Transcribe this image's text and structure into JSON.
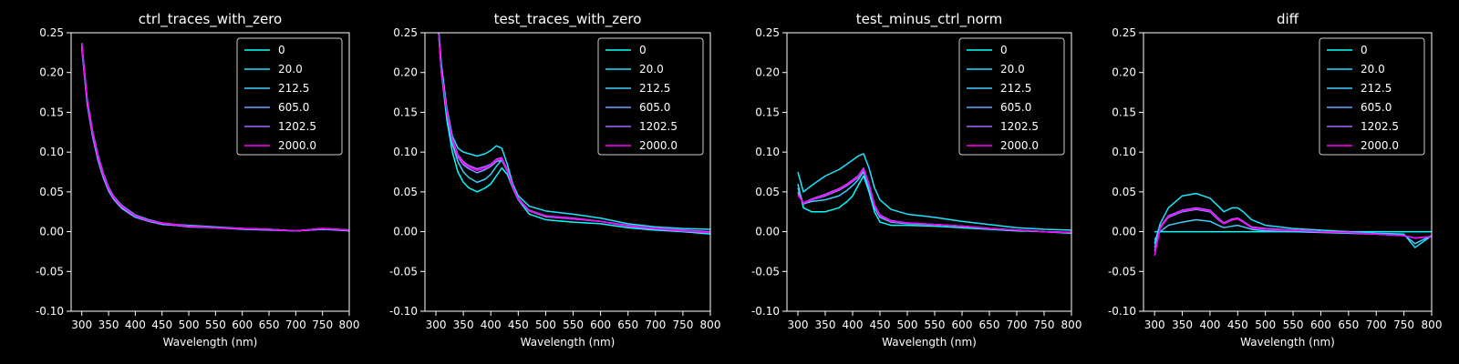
{
  "figure": {
    "background": "#000000",
    "foreground": "#ffffff",
    "legend_entries": [
      "0",
      "20.0",
      "212.5",
      "605.0",
      "1202.5",
      "2000.0"
    ],
    "series_colors": [
      "#00ffff",
      "#1be4ff",
      "#3ecfff",
      "#64a8ff",
      "#a566ff",
      "#ff00ff"
    ]
  },
  "chart_data": [
    {
      "type": "line",
      "title": "ctrl_traces_with_zero",
      "xlabel": "Wavelength (nm)",
      "ylabel": "",
      "xlim": [
        280,
        800
      ],
      "ylim": [
        -0.1,
        0.25
      ],
      "xticks": [
        300,
        350,
        400,
        450,
        500,
        550,
        600,
        650,
        700,
        750,
        800
      ],
      "yticks": [
        -0.1,
        -0.05,
        0.0,
        0.05,
        0.1,
        0.15,
        0.2,
        0.25
      ],
      "legend_position": "top-right",
      "x": [
        300,
        310,
        320,
        330,
        340,
        350,
        360,
        375,
        400,
        425,
        450,
        475,
        500,
        550,
        600,
        650,
        700,
        750,
        800
      ],
      "series": [
        {
          "name": "0",
          "values": [
            0.235,
            0.165,
            0.125,
            0.095,
            0.072,
            0.055,
            0.043,
            0.032,
            0.02,
            0.014,
            0.01,
            0.008,
            0.007,
            0.005,
            0.004,
            0.003,
            0.001,
            0.004,
            0.002
          ]
        },
        {
          "name": "20.0",
          "values": [
            0.237,
            0.167,
            0.127,
            0.097,
            0.074,
            0.056,
            0.044,
            0.033,
            0.021,
            0.015,
            0.011,
            0.009,
            0.008,
            0.006,
            0.004,
            0.003,
            0.001,
            0.004,
            0.002
          ]
        },
        {
          "name": "212.5",
          "values": [
            0.232,
            0.162,
            0.122,
            0.092,
            0.07,
            0.053,
            0.041,
            0.03,
            0.019,
            0.013,
            0.01,
            0.008,
            0.007,
            0.005,
            0.004,
            0.003,
            0.001,
            0.003,
            0.002
          ]
        },
        {
          "name": "605.0",
          "values": [
            0.23,
            0.16,
            0.12,
            0.09,
            0.068,
            0.051,
            0.04,
            0.029,
            0.018,
            0.013,
            0.009,
            0.008,
            0.006,
            0.005,
            0.003,
            0.002,
            0.001,
            0.003,
            0.001
          ]
        },
        {
          "name": "1202.5",
          "values": [
            0.234,
            0.164,
            0.124,
            0.094,
            0.071,
            0.054,
            0.042,
            0.031,
            0.02,
            0.014,
            0.01,
            0.008,
            0.007,
            0.005,
            0.004,
            0.003,
            0.001,
            0.004,
            0.002
          ]
        },
        {
          "name": "2000.0",
          "values": [
            0.236,
            0.166,
            0.126,
            0.096,
            0.073,
            0.055,
            0.043,
            0.032,
            0.02,
            0.014,
            0.011,
            0.009,
            0.007,
            0.005,
            0.004,
            0.003,
            0.001,
            0.004,
            0.002
          ]
        }
      ]
    },
    {
      "type": "line",
      "title": "test_traces_with_zero",
      "xlabel": "Wavelength (nm)",
      "ylabel": "",
      "xlim": [
        280,
        800
      ],
      "ylim": [
        -0.1,
        0.25
      ],
      "xticks": [
        300,
        350,
        400,
        450,
        500,
        550,
        600,
        650,
        700,
        750,
        800
      ],
      "yticks": [
        -0.1,
        -0.05,
        0.0,
        0.05,
        0.1,
        0.15,
        0.2,
        0.25
      ],
      "legend_position": "top-right",
      "x": [
        300,
        310,
        320,
        330,
        340,
        350,
        360,
        375,
        390,
        400,
        410,
        420,
        430,
        440,
        450,
        470,
        500,
        550,
        600,
        650,
        700,
        750,
        800
      ],
      "series": [
        {
          "name": "0",
          "values": [
            0.3,
            0.2,
            0.14,
            0.1,
            0.075,
            0.062,
            0.055,
            0.05,
            0.055,
            0.06,
            0.07,
            0.08,
            0.072,
            0.055,
            0.04,
            0.022,
            0.015,
            0.012,
            0.01,
            0.005,
            0.002,
            0.0,
            -0.003
          ]
        },
        {
          "name": "20.0",
          "values": [
            0.3,
            0.21,
            0.155,
            0.12,
            0.105,
            0.1,
            0.098,
            0.095,
            0.098,
            0.102,
            0.108,
            0.105,
            0.085,
            0.06,
            0.045,
            0.032,
            0.026,
            0.022,
            0.017,
            0.01,
            0.006,
            0.004,
            0.003
          ]
        },
        {
          "name": "212.5",
          "values": [
            0.3,
            0.2,
            0.148,
            0.11,
            0.088,
            0.075,
            0.068,
            0.062,
            0.066,
            0.072,
            0.082,
            0.09,
            0.078,
            0.058,
            0.042,
            0.026,
            0.019,
            0.016,
            0.013,
            0.007,
            0.003,
            0.001,
            -0.001
          ]
        },
        {
          "name": "605.0",
          "values": [
            0.3,
            0.2,
            0.15,
            0.114,
            0.094,
            0.084,
            0.079,
            0.074,
            0.078,
            0.082,
            0.088,
            0.09,
            0.076,
            0.056,
            0.04,
            0.026,
            0.019,
            0.016,
            0.013,
            0.007,
            0.003,
            0.001,
            -0.001
          ]
        },
        {
          "name": "1202.5",
          "values": [
            0.3,
            0.2,
            0.152,
            0.116,
            0.097,
            0.088,
            0.083,
            0.079,
            0.082,
            0.085,
            0.091,
            0.093,
            0.078,
            0.057,
            0.041,
            0.027,
            0.02,
            0.017,
            0.013,
            0.008,
            0.004,
            0.002,
            0.0
          ]
        },
        {
          "name": "2000.0",
          "values": [
            0.3,
            0.2,
            0.151,
            0.115,
            0.095,
            0.086,
            0.081,
            0.077,
            0.08,
            0.084,
            0.09,
            0.092,
            0.077,
            0.057,
            0.041,
            0.026,
            0.02,
            0.016,
            0.013,
            0.007,
            0.004,
            0.001,
            -0.001
          ]
        }
      ]
    },
    {
      "type": "line",
      "title": "test_minus_ctrl_norm",
      "xlabel": "Wavelength (nm)",
      "ylabel": "",
      "xlim": [
        280,
        800
      ],
      "ylim": [
        -0.1,
        0.25
      ],
      "xticks": [
        300,
        350,
        400,
        450,
        500,
        550,
        600,
        650,
        700,
        750,
        800
      ],
      "yticks": [
        -0.1,
        -0.05,
        0.0,
        0.05,
        0.1,
        0.15,
        0.2,
        0.25
      ],
      "legend_position": "top-right",
      "x": [
        300,
        310,
        325,
        350,
        375,
        390,
        400,
        410,
        420,
        430,
        440,
        450,
        470,
        500,
        550,
        600,
        650,
        700,
        750,
        800
      ],
      "series": [
        {
          "name": "0",
          "values": [
            0.06,
            0.03,
            0.025,
            0.025,
            0.03,
            0.038,
            0.045,
            0.058,
            0.07,
            0.05,
            0.025,
            0.012,
            0.008,
            0.008,
            0.007,
            0.005,
            0.003,
            0.001,
            0.0,
            -0.002
          ]
        },
        {
          "name": "20.0",
          "values": [
            0.075,
            0.05,
            0.058,
            0.07,
            0.078,
            0.085,
            0.09,
            0.095,
            0.098,
            0.08,
            0.055,
            0.04,
            0.028,
            0.022,
            0.018,
            0.013,
            0.009,
            0.005,
            0.003,
            0.002
          ]
        },
        {
          "name": "212.5",
          "values": [
            0.055,
            0.035,
            0.038,
            0.04,
            0.045,
            0.052,
            0.058,
            0.065,
            0.075,
            0.055,
            0.03,
            0.018,
            0.012,
            0.01,
            0.009,
            0.007,
            0.004,
            0.002,
            0.0,
            -0.001
          ]
        },
        {
          "name": "605.0",
          "values": [
            0.05,
            0.035,
            0.04,
            0.045,
            0.052,
            0.058,
            0.063,
            0.068,
            0.078,
            0.058,
            0.032,
            0.02,
            0.013,
            0.011,
            0.009,
            0.007,
            0.004,
            0.002,
            0.0,
            -0.001
          ]
        },
        {
          "name": "1202.5",
          "values": [
            0.048,
            0.036,
            0.041,
            0.047,
            0.054,
            0.06,
            0.065,
            0.07,
            0.08,
            0.06,
            0.034,
            0.021,
            0.014,
            0.011,
            0.009,
            0.007,
            0.004,
            0.002,
            0.0,
            -0.001
          ]
        },
        {
          "name": "2000.0",
          "values": [
            0.046,
            0.036,
            0.04,
            0.046,
            0.053,
            0.059,
            0.064,
            0.069,
            0.079,
            0.059,
            0.033,
            0.02,
            0.013,
            0.011,
            0.009,
            0.007,
            0.004,
            0.002,
            0.0,
            -0.001
          ]
        }
      ]
    },
    {
      "type": "line",
      "title": "diff",
      "xlabel": "Wavelength (nm)",
      "ylabel": "",
      "xlim": [
        280,
        800
      ],
      "ylim": [
        -0.1,
        0.25
      ],
      "xticks": [
        300,
        350,
        400,
        450,
        500,
        550,
        600,
        650,
        700,
        750,
        800
      ],
      "yticks": [
        -0.1,
        -0.05,
        0.0,
        0.05,
        0.1,
        0.15,
        0.2,
        0.25
      ],
      "legend_position": "top-right",
      "x": [
        300,
        310,
        325,
        350,
        375,
        400,
        415,
        425,
        440,
        450,
        460,
        475,
        500,
        550,
        600,
        650,
        700,
        750,
        770,
        800
      ],
      "series": [
        {
          "name": "0",
          "values": [
            0.0,
            0.0,
            0.0,
            0.0,
            0.0,
            0.0,
            0.0,
            0.0,
            0.0,
            0.0,
            0.0,
            0.0,
            0.0,
            0.0,
            0.0,
            0.0,
            0.0,
            0.0,
            0.0,
            0.0
          ]
        },
        {
          "name": "20.0",
          "values": [
            -0.015,
            0.01,
            0.03,
            0.045,
            0.048,
            0.042,
            0.032,
            0.025,
            0.03,
            0.03,
            0.025,
            0.015,
            0.008,
            0.004,
            0.002,
            0.0,
            -0.002,
            -0.003,
            -0.02,
            -0.005
          ]
        },
        {
          "name": "212.5",
          "values": [
            -0.01,
            0.0,
            0.008,
            0.012,
            0.015,
            0.013,
            0.008,
            0.005,
            0.007,
            0.008,
            0.006,
            0.003,
            0.001,
            0.0,
            -0.001,
            -0.002,
            -0.003,
            -0.004,
            -0.015,
            -0.005
          ]
        },
        {
          "name": "605.0",
          "values": [
            -0.02,
            0.005,
            0.018,
            0.025,
            0.028,
            0.025,
            0.015,
            0.01,
            0.015,
            0.016,
            0.012,
            0.006,
            0.004,
            0.002,
            0.0,
            -0.001,
            -0.003,
            -0.005,
            -0.008,
            -0.006
          ]
        },
        {
          "name": "1202.5",
          "values": [
            -0.025,
            0.006,
            0.02,
            0.027,
            0.03,
            0.027,
            0.017,
            0.011,
            0.016,
            0.017,
            0.013,
            0.006,
            0.004,
            0.002,
            0.0,
            -0.001,
            -0.003,
            -0.005,
            -0.008,
            -0.006
          ]
        },
        {
          "name": "2000.0",
          "values": [
            -0.03,
            0.004,
            0.019,
            0.026,
            0.029,
            0.026,
            0.016,
            0.01,
            0.015,
            0.016,
            0.012,
            0.005,
            0.003,
            0.002,
            0.0,
            -0.001,
            -0.003,
            -0.005,
            -0.008,
            -0.006
          ]
        }
      ]
    }
  ]
}
